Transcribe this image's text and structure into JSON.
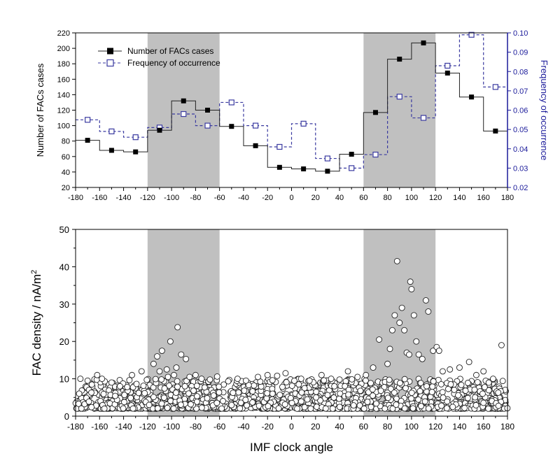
{
  "chart_data": [
    {
      "type": "step-line",
      "xlabel": "",
      "ylabel": "Number of FACs cases",
      "y2label": "Frequency of occurrence",
      "xlim": [
        -180,
        180
      ],
      "ylim": [
        20,
        220
      ],
      "y2lim": [
        0.02,
        0.1
      ],
      "xticks": [
        "-180",
        "-160",
        "-140",
        "-120",
        "-100",
        "-80",
        "-60",
        "-40",
        "-20",
        "0",
        "20",
        "40",
        "60",
        "80",
        "100",
        "120",
        "140",
        "160",
        "180"
      ],
      "yticks": [
        "20",
        "40",
        "60",
        "80",
        "100",
        "120",
        "140",
        "160",
        "180",
        "200",
        "220"
      ],
      "y2ticks": [
        "0.02",
        "0.03",
        "0.04",
        "0.05",
        "0.06",
        "0.07",
        "0.08",
        "0.09",
        "0.10"
      ],
      "shaded_ranges": [
        [
          -120,
          -60
        ],
        [
          60,
          120
        ]
      ],
      "grid": false,
      "legend_position": "top-left",
      "x": [
        -170,
        -150,
        -130,
        -110,
        -90,
        -70,
        -50,
        -30,
        -10,
        10,
        30,
        50,
        70,
        90,
        110,
        130,
        150,
        170
      ],
      "series": [
        {
          "name": "Number of FACs cases",
          "axis": "left",
          "marker": "filled-square",
          "color": "#000000",
          "values": [
            81,
            68,
            66,
            94,
            132,
            120,
            99,
            74,
            46,
            44,
            41,
            63,
            117,
            186,
            207,
            168,
            137,
            93
          ]
        },
        {
          "name": "Frequency of occurrence",
          "axis": "right",
          "marker": "open-square",
          "style": "dashed",
          "color": "#3a3aa0",
          "values": [
            0.055,
            0.049,
            0.046,
            0.051,
            0.058,
            0.052,
            0.064,
            0.052,
            0.041,
            0.053,
            0.035,
            0.03,
            0.037,
            0.067,
            0.056,
            0.083,
            0.099,
            0.072
          ]
        }
      ]
    },
    {
      "type": "scatter",
      "xlabel": "IMF clock angle",
      "ylabel": "FAC density / nA/m",
      "ylabel_superscript": "2",
      "xlim": [
        -180,
        180
      ],
      "ylim": [
        0,
        50
      ],
      "xticks": [
        "-180",
        "-160",
        "-140",
        "-120",
        "-100",
        "-80",
        "-60",
        "-40",
        "-20",
        "0",
        "20",
        "40",
        "60",
        "80",
        "100",
        "120",
        "140",
        "160",
        "180"
      ],
      "yticks": [
        "0",
        "10",
        "20",
        "30",
        "40",
        "50"
      ],
      "shaded_ranges": [
        [
          -120,
          -60
        ],
        [
          60,
          120
        ]
      ],
      "grid": false,
      "marker": "open-circle",
      "dense_band": {
        "note_values_range": [
          2,
          12
        ]
      },
      "points": [
        [
          -176,
          10
        ],
        [
          -170,
          9.5
        ],
        [
          -162,
          11
        ],
        [
          -158,
          10
        ],
        [
          -150,
          9
        ],
        [
          -143,
          8
        ],
        [
          -133,
          11
        ],
        [
          -125,
          12
        ],
        [
          -112,
          16
        ],
        [
          -108,
          17.5
        ],
        [
          -104,
          12.5
        ],
        [
          -101,
          20
        ],
        [
          -98,
          11
        ],
        [
          -95,
          23.8
        ],
        [
          -92,
          16.5
        ],
        [
          -88,
          15.3
        ],
        [
          -115,
          14
        ],
        [
          -110,
          12
        ],
        [
          -103,
          10.5
        ],
        [
          -96,
          13
        ],
        [
          -85,
          10.5
        ],
        [
          -80,
          11
        ],
        [
          -75,
          10
        ],
        [
          -68,
          9.8
        ],
        [
          -62,
          10.6
        ],
        [
          -45,
          10
        ],
        [
          -38,
          9.5
        ],
        [
          -28,
          10.5
        ],
        [
          -20,
          11
        ],
        [
          -12,
          10.8
        ],
        [
          -5,
          11.5
        ],
        [
          8,
          10
        ],
        [
          15,
          9.5
        ],
        [
          25,
          11
        ],
        [
          33,
          10
        ],
        [
          40,
          9.8
        ],
        [
          47,
          12
        ],
        [
          55,
          10.5
        ],
        [
          62,
          11
        ],
        [
          68,
          13
        ],
        [
          73,
          20.5
        ],
        [
          80,
          14
        ],
        [
          82,
          18
        ],
        [
          84,
          23
        ],
        [
          86,
          27
        ],
        [
          88,
          41.5
        ],
        [
          90,
          25
        ],
        [
          92,
          29
        ],
        [
          94,
          23
        ],
        [
          96,
          17
        ],
        [
          98,
          16.5
        ],
        [
          99,
          36
        ],
        [
          100,
          34
        ],
        [
          102,
          27
        ],
        [
          104,
          20
        ],
        [
          106,
          16.5
        ],
        [
          109,
          15.3
        ],
        [
          112,
          31
        ],
        [
          114,
          28
        ],
        [
          118,
          17.5
        ],
        [
          121,
          18.5
        ],
        [
          123,
          17.5
        ],
        [
          126,
          12
        ],
        [
          132,
          12.5
        ],
        [
          140,
          13
        ],
        [
          148,
          14.5
        ],
        [
          154,
          11
        ],
        [
          160,
          12
        ],
        [
          168,
          10
        ],
        [
          175,
          19
        ]
      ]
    }
  ]
}
